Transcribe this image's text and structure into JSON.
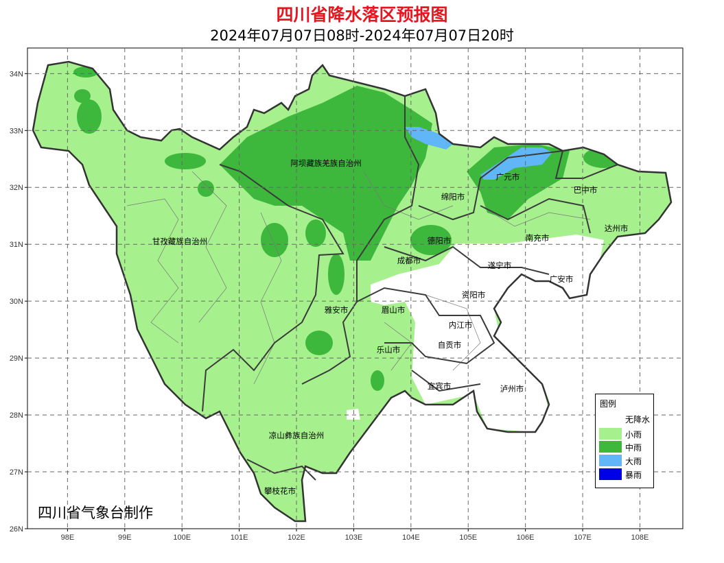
{
  "title": "四川省降水落区预报图",
  "subtitle": "2024年07月07日08时-2024年07月07日20时",
  "credit": "四川省气象台制作",
  "axes": {
    "lon_ticks": [
      "98E",
      "99E",
      "100E",
      "101E",
      "102E",
      "103E",
      "104E",
      "105E",
      "106E",
      "107E",
      "108E"
    ],
    "lat_ticks": [
      "34N",
      "33N",
      "32N",
      "31N",
      "30N",
      "29N",
      "28N",
      "27N",
      "26N"
    ],
    "lon_range": [
      97.3,
      108.75
    ],
    "lat_range": [
      26,
      34.45
    ],
    "grid": "dashed"
  },
  "regions": [
    "阿坝藏族羌族自治州",
    "甘孜藏族自治州",
    "绵阳市",
    "广元市",
    "巴中市",
    "达州市",
    "南充市",
    "德阳市",
    "成都市",
    "遂宁市",
    "广安市",
    "资阳市",
    "雅安市",
    "眉山市",
    "内江市",
    "自贡市",
    "乐山市",
    "宜宾市",
    "泸州市",
    "凉山彝族自治州",
    "攀枝花市"
  ],
  "legend": {
    "title": "图例",
    "items": [
      {
        "label": "无降水",
        "color": "#ffffff"
      },
      {
        "label": "小雨",
        "color": "#a6f08e"
      },
      {
        "label": "中雨",
        "color": "#3db83d"
      },
      {
        "label": "大雨",
        "color": "#60b6f6"
      },
      {
        "label": "暴雨",
        "color": "#0000e6"
      }
    ]
  }
}
